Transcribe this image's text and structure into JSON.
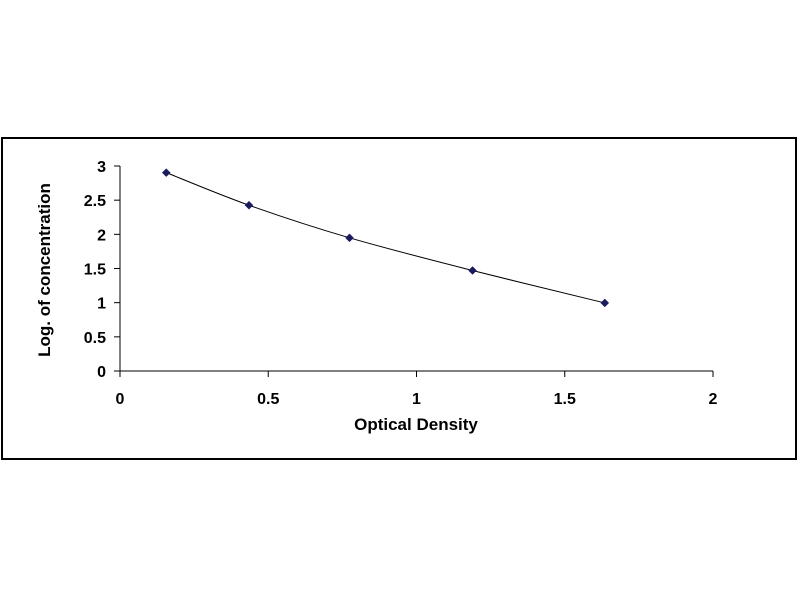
{
  "chart_data": {
    "type": "scatter",
    "title": "",
    "xlabel": "Optical Density",
    "ylabel": "Log. of concentration",
    "xlim": [
      0,
      2
    ],
    "ylim": [
      0,
      3
    ],
    "x_ticks": [
      "0",
      "0.5",
      "1",
      "1.5",
      "2"
    ],
    "y_ticks": [
      "0",
      "0.5",
      "1",
      "1.5",
      "2",
      "2.5",
      "3"
    ],
    "grid": false,
    "legend": "none",
    "trendline": "smooth curve through points",
    "series": [
      {
        "marker": "diamond",
        "color": "#1a1a5e",
        "x": [
          0.156,
          0.435,
          0.774,
          1.189,
          1.635
        ],
        "y": [
          2.903,
          2.426,
          1.949,
          1.471,
          0.996
        ]
      }
    ]
  }
}
